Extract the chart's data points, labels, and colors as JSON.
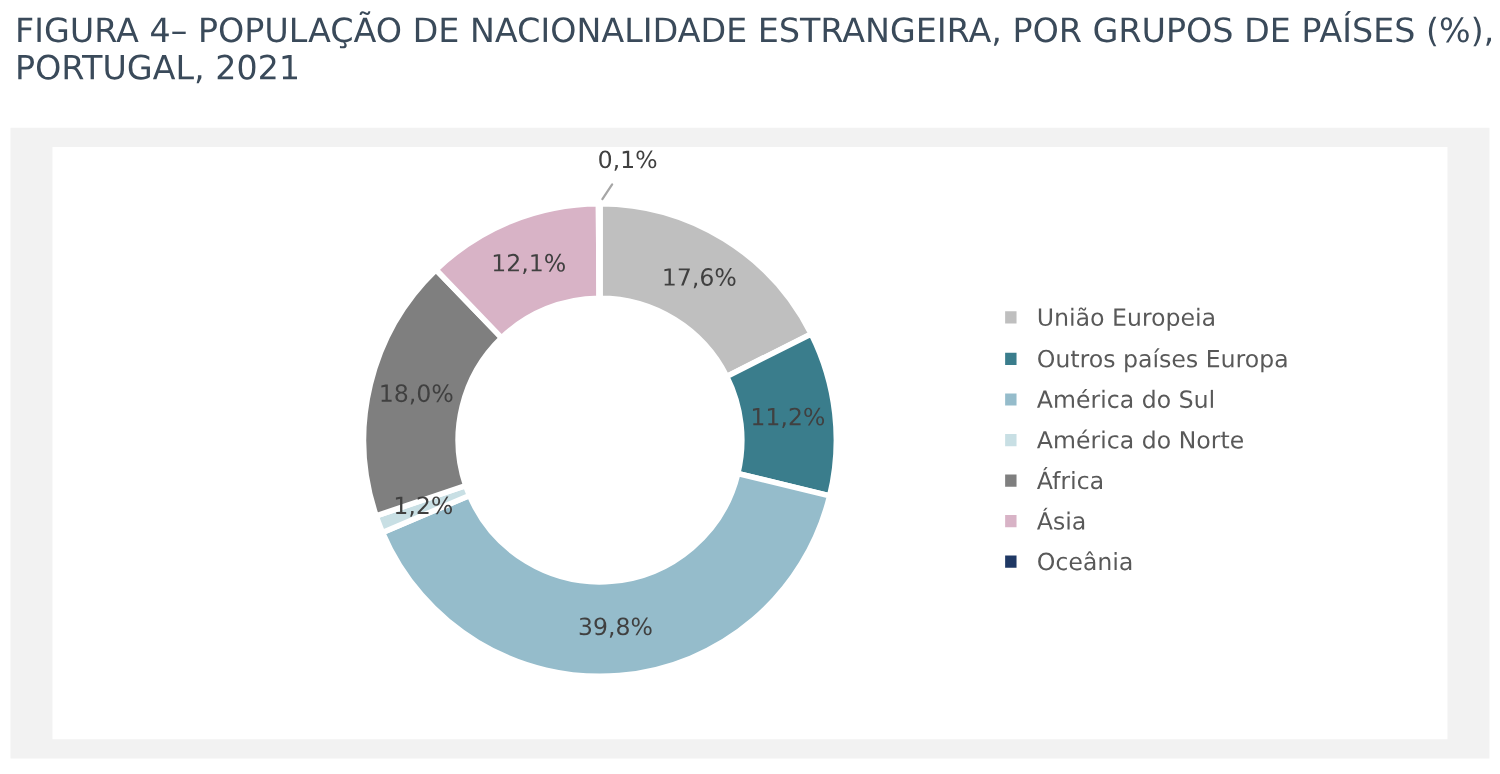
{
  "chart_data": {
    "type": "donut",
    "title": "FIGURA 4– POPULAÇÃO DE NACIONALIDADE ESTRANGEIRA, POR GRUPOS DE PAÍSES (%), PORTUGAL, 2021",
    "categories": [
      "União Europeia",
      "Outros países Europa",
      "América do Sul",
      "América do Norte",
      "África",
      "Ásia",
      "Oceânia"
    ],
    "values": [
      17.6,
      11.2,
      39.8,
      1.2,
      18.0,
      12.1,
      0.1
    ],
    "value_labels": [
      "17,6%",
      "11,2%",
      "39,8%",
      "1,2%",
      "18,0%",
      "12,1%",
      "0,1%"
    ],
    "colors": [
      "#bfbfbf",
      "#3a7d8c",
      "#95bccb",
      "#c8dfe4",
      "#7f7f7f",
      "#d8b3c6",
      "#1f3864"
    ],
    "legend": "right"
  }
}
